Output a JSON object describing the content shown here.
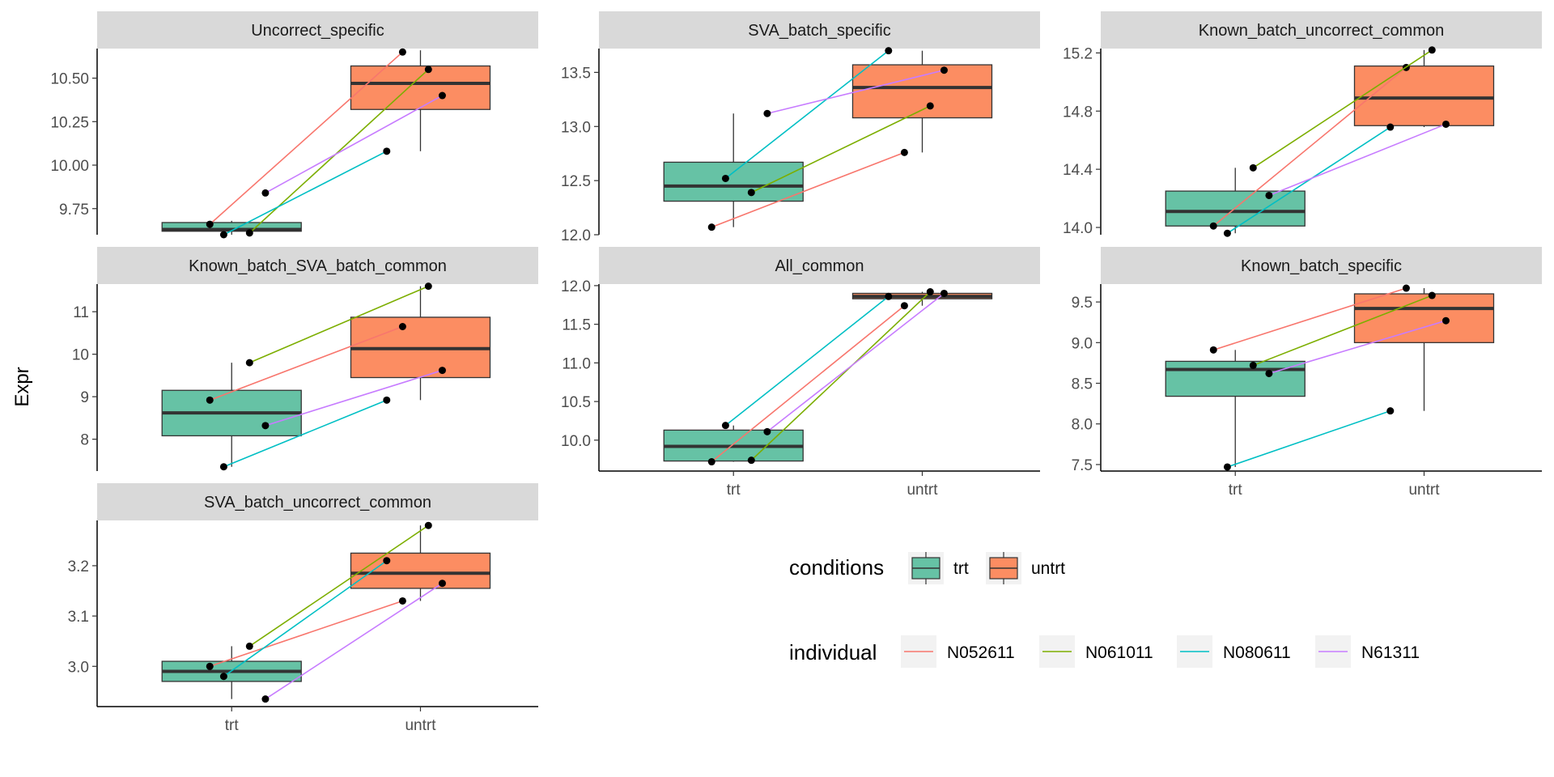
{
  "figure": {
    "ylabel": "Expr",
    "x_categories": [
      "trt",
      "untrt"
    ],
    "colors": {
      "trt": "#66C2A5",
      "untrt": "#FC8D62",
      "strip_bg": "#D9D9D9",
      "box_line": "#333333",
      "N052611": "#F8766D",
      "N061011": "#7CAE00",
      "N080611": "#00BFC4",
      "N61311": "#C77CFF"
    }
  },
  "legend": {
    "conditions": {
      "title": "conditions",
      "items": [
        {
          "label": "trt",
          "color": "#66C2A5"
        },
        {
          "label": "untrt",
          "color": "#FC8D62"
        }
      ]
    },
    "individual": {
      "title": "individual",
      "items": [
        {
          "label": "N052611",
          "color": "#F8766D"
        },
        {
          "label": "N061011",
          "color": "#7CAE00"
        },
        {
          "label": "N080611",
          "color": "#00BFC4"
        },
        {
          "label": "N61311",
          "color": "#C77CFF"
        }
      ]
    }
  },
  "chart_data": [
    {
      "type": "box",
      "title": "Uncorrect_specific",
      "ylim": [
        9.6,
        10.67
      ],
      "yticks": [
        9.75,
        10.0,
        10.25,
        10.5
      ],
      "ytick_labels": [
        "9.75",
        "10.00",
        "10.25",
        "10.50"
      ],
      "boxes": {
        "trt": {
          "min": 9.6,
          "q1": 9.62,
          "median": 9.63,
          "q3": 9.67,
          "max": 9.68
        },
        "untrt": {
          "min": 10.08,
          "q1": 10.32,
          "median": 10.47,
          "q3": 10.57,
          "max": 10.66
        }
      },
      "series": [
        {
          "name": "N052611",
          "values": [
            9.66,
            10.65
          ]
        },
        {
          "name": "N061011",
          "values": [
            9.61,
            10.55
          ]
        },
        {
          "name": "N080611",
          "values": [
            9.6,
            10.08
          ]
        },
        {
          "name": "N61311",
          "values": [
            9.84,
            10.4
          ]
        }
      ]
    },
    {
      "type": "box",
      "title": "SVA_batch_specific",
      "ylim": [
        12.0,
        13.72
      ],
      "yticks": [
        12.0,
        12.5,
        13.0,
        13.5
      ],
      "ytick_labels": [
        "12.0",
        "12.5",
        "13.0",
        "13.5"
      ],
      "boxes": {
        "trt": {
          "min": 12.07,
          "q1": 12.31,
          "median": 12.45,
          "q3": 12.67,
          "max": 13.12
        },
        "untrt": {
          "min": 12.76,
          "q1": 13.08,
          "median": 13.36,
          "q3": 13.57,
          "max": 13.7
        }
      },
      "series": [
        {
          "name": "N052611",
          "values": [
            12.07,
            12.76
          ]
        },
        {
          "name": "N061011",
          "values": [
            12.39,
            13.19
          ]
        },
        {
          "name": "N080611",
          "values": [
            12.52,
            13.7
          ]
        },
        {
          "name": "N61311",
          "values": [
            13.12,
            13.52
          ]
        }
      ]
    },
    {
      "type": "box",
      "title": "Known_batch_uncorrect_common",
      "ylim": [
        13.95,
        15.23
      ],
      "yticks": [
        14.0,
        14.4,
        14.8,
        15.2
      ],
      "ytick_labels": [
        "14.0",
        "14.4",
        "14.8",
        "15.2"
      ],
      "boxes": {
        "trt": {
          "min": 13.96,
          "q1": 14.01,
          "median": 14.11,
          "q3": 14.25,
          "max": 14.41
        },
        "untrt": {
          "min": 14.69,
          "q1": 14.7,
          "median": 14.89,
          "q3": 15.11,
          "max": 15.22
        }
      },
      "series": [
        {
          "name": "N052611",
          "values": [
            14.01,
            15.1
          ]
        },
        {
          "name": "N061011",
          "values": [
            14.41,
            15.22
          ]
        },
        {
          "name": "N080611",
          "values": [
            13.96,
            14.69
          ]
        },
        {
          "name": "N61311",
          "values": [
            14.22,
            14.71
          ]
        }
      ]
    },
    {
      "type": "box",
      "title": "Known_batch_SVA_batch_common",
      "ylim": [
        7.25,
        11.65
      ],
      "yticks": [
        8,
        9,
        10,
        11
      ],
      "ytick_labels": [
        "8",
        "9",
        "10",
        "11"
      ],
      "boxes": {
        "trt": {
          "min": 7.35,
          "q1": 8.08,
          "median": 8.62,
          "q3": 9.15,
          "max": 9.8
        },
        "untrt": {
          "min": 8.92,
          "q1": 9.45,
          "median": 10.13,
          "q3": 10.87,
          "max": 11.6
        }
      },
      "series": [
        {
          "name": "N052611",
          "values": [
            8.92,
            10.65
          ]
        },
        {
          "name": "N061011",
          "values": [
            9.8,
            11.6
          ]
        },
        {
          "name": "N080611",
          "values": [
            7.35,
            8.92
          ]
        },
        {
          "name": "N61311",
          "values": [
            8.32,
            9.62
          ]
        }
      ]
    },
    {
      "type": "box",
      "title": "All_common",
      "ylim": [
        9.6,
        12.02
      ],
      "yticks": [
        10.0,
        10.5,
        11.0,
        11.5,
        12.0
      ],
      "ytick_labels": [
        "10.0",
        "10.5",
        "11.0",
        "11.5",
        "12.0"
      ],
      "boxes": {
        "trt": {
          "min": 9.72,
          "q1": 9.73,
          "median": 9.92,
          "q3": 10.13,
          "max": 10.19
        },
        "untrt": {
          "min": 11.74,
          "q1": 11.83,
          "median": 11.86,
          "q3": 11.9,
          "max": 11.92
        }
      },
      "series": [
        {
          "name": "N052611",
          "values": [
            9.72,
            11.74
          ]
        },
        {
          "name": "N061011",
          "values": [
            9.74,
            11.92
          ]
        },
        {
          "name": "N080611",
          "values": [
            10.19,
            11.86
          ]
        },
        {
          "name": "N61311",
          "values": [
            10.11,
            11.9
          ]
        }
      ]
    },
    {
      "type": "box",
      "title": "Known_batch_specific",
      "ylim": [
        7.42,
        9.72
      ],
      "yticks": [
        7.5,
        8.0,
        8.5,
        9.0,
        9.5
      ],
      "ytick_labels": [
        "7.5",
        "8.0",
        "8.5",
        "9.0",
        "9.5"
      ],
      "boxes": {
        "trt": {
          "min": 7.47,
          "q1": 8.34,
          "median": 8.67,
          "q3": 8.77,
          "max": 8.91
        },
        "untrt": {
          "min": 8.16,
          "q1": 9.0,
          "median": 9.42,
          "q3": 9.6,
          "max": 9.67
        }
      },
      "series": [
        {
          "name": "N052611",
          "values": [
            8.91,
            9.67
          ]
        },
        {
          "name": "N061011",
          "values": [
            8.72,
            9.58
          ]
        },
        {
          "name": "N080611",
          "values": [
            7.47,
            8.16
          ]
        },
        {
          "name": "N61311",
          "values": [
            8.62,
            9.27
          ]
        }
      ]
    },
    {
      "type": "box",
      "title": "SVA_batch_uncorrect_common",
      "ylim": [
        2.92,
        3.29
      ],
      "yticks": [
        3.0,
        3.1,
        3.2
      ],
      "ytick_labels": [
        "3.0",
        "3.1",
        "3.2"
      ],
      "boxes": {
        "trt": {
          "min": 2.935,
          "q1": 2.97,
          "median": 2.99,
          "q3": 3.01,
          "max": 3.04
        },
        "untrt": {
          "min": 3.13,
          "q1": 3.155,
          "median": 3.185,
          "q3": 3.225,
          "max": 3.28
        }
      },
      "series": [
        {
          "name": "N052611",
          "values": [
            3.0,
            3.13
          ]
        },
        {
          "name": "N061011",
          "values": [
            3.04,
            3.28
          ]
        },
        {
          "name": "N080611",
          "values": [
            2.98,
            3.21
          ]
        },
        {
          "name": "N61311",
          "values": [
            2.935,
            3.165
          ]
        }
      ]
    }
  ]
}
